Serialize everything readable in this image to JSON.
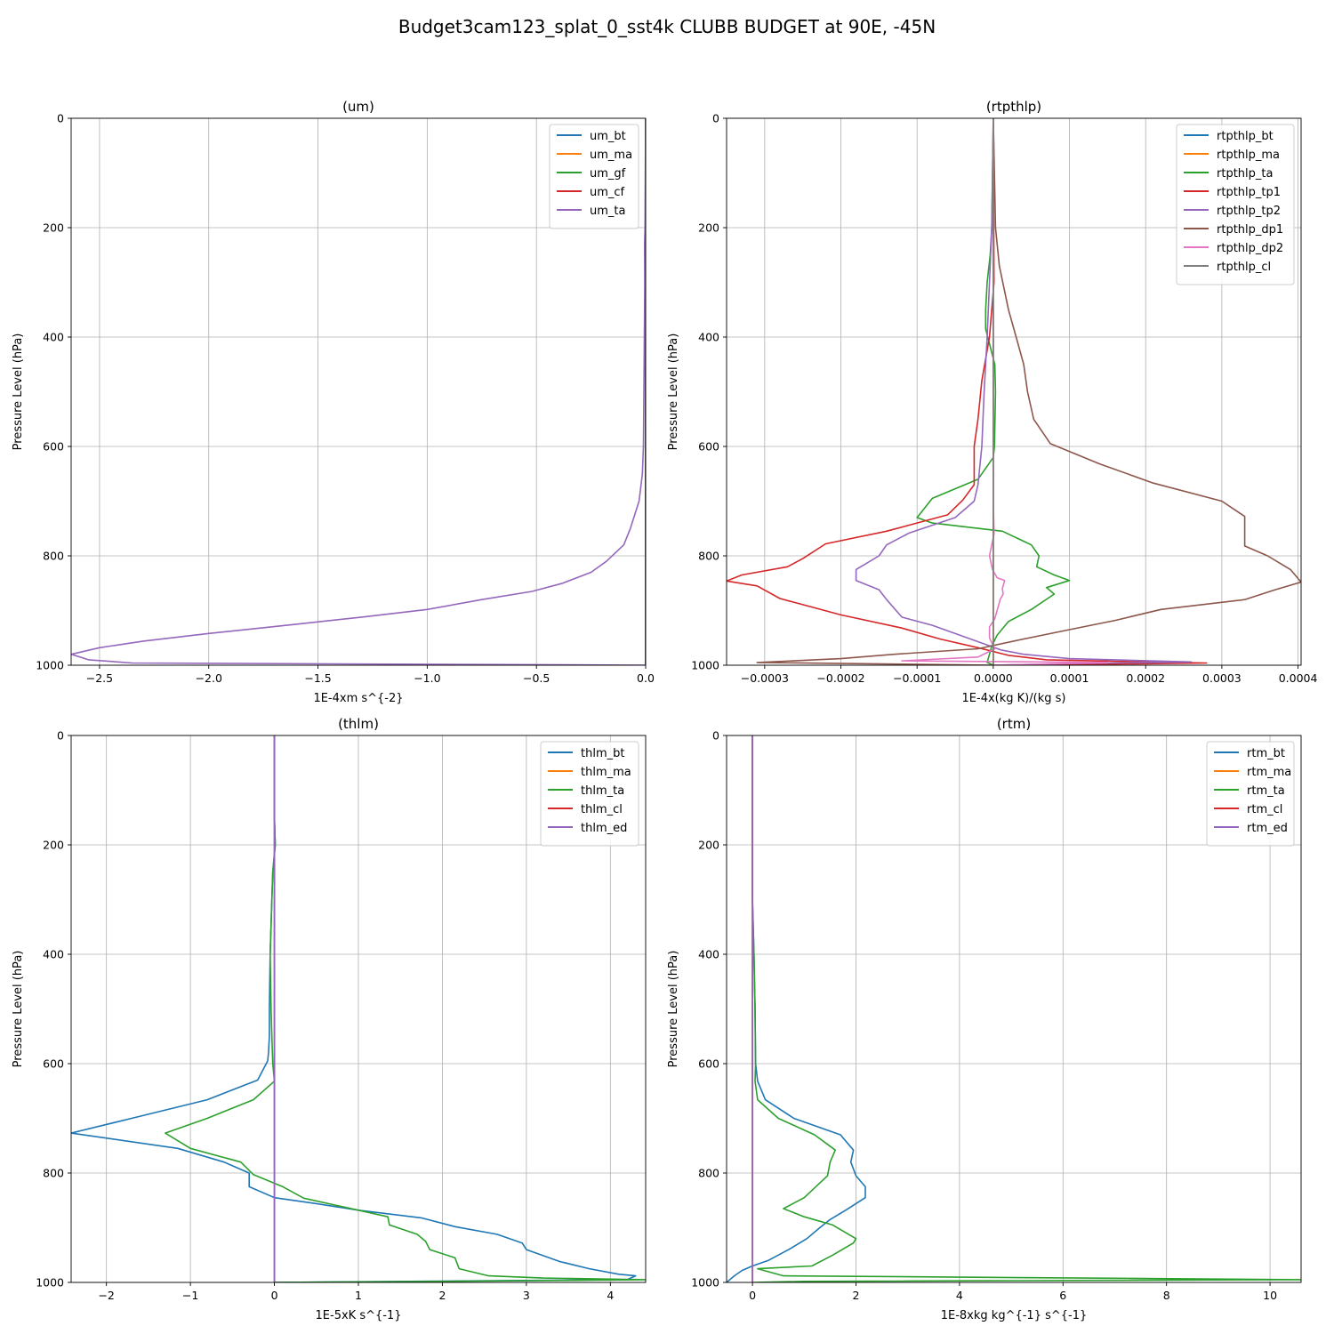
{
  "figure": {
    "title": "Budget3cam123_splat_0_sst4k CLUBB BUDGET at 90E, -45N"
  },
  "chart_data": [
    {
      "type": "line",
      "title": "(um)",
      "xlabel": "1E-4xm s^{-2}",
      "ylabel": "Pressure Level (hPa)",
      "xlim": [
        -2.63,
        0.0
      ],
      "ylim": [
        1000,
        0
      ],
      "y_inverted": true,
      "grid": true,
      "legend_position": "top-right",
      "xticks": [
        -2.5,
        -2.0,
        -1.5,
        -1.0,
        -0.5,
        0.0
      ],
      "xtick_labels": [
        "−2.5",
        "−2.0",
        "−1.5",
        "−1.0",
        "−0.5",
        "0.0"
      ],
      "yticks": [
        0,
        200,
        400,
        600,
        800,
        1000
      ],
      "ytick_labels": [
        "0",
        "200",
        "400",
        "600",
        "800",
        "1000"
      ],
      "series": [
        {
          "name": "um_bt",
          "color": "#1f77b4",
          "x": [
            0,
            0,
            0,
            0,
            0,
            0,
            0,
            0,
            0,
            0,
            0
          ],
          "y": [
            0,
            200,
            400,
            600,
            700,
            800,
            900,
            950,
            980,
            995,
            1000
          ]
        },
        {
          "name": "um_ma",
          "color": "#ff7f0e",
          "x": [
            0,
            0,
            0,
            0,
            0,
            0,
            0,
            0,
            0,
            0,
            0
          ],
          "y": [
            0,
            200,
            400,
            600,
            700,
            800,
            900,
            950,
            980,
            995,
            1000
          ]
        },
        {
          "name": "um_gf",
          "color": "#2ca02c",
          "x": [
            0,
            0,
            0,
            0,
            0,
            0,
            0,
            0,
            0,
            0,
            0
          ],
          "y": [
            0,
            200,
            400,
            600,
            700,
            800,
            900,
            950,
            980,
            995,
            1000
          ]
        },
        {
          "name": "um_cf",
          "color": "#d62728",
          "x": [
            0,
            0,
            0,
            0,
            0,
            0,
            0,
            0,
            0,
            0,
            0,
            0
          ],
          "y": [
            0,
            200,
            230,
            240,
            300,
            400,
            600,
            700,
            800,
            900,
            980,
            1000
          ]
        },
        {
          "name": "um_ta",
          "color": "#9467bd",
          "x": [
            0,
            -0.003,
            -0.005,
            -0.005,
            -0.004,
            -0.006,
            -0.008,
            -0.01,
            -0.015,
            -0.03,
            -0.07,
            -0.1,
            -0.18,
            -0.25,
            -0.38,
            -0.52,
            -0.75,
            -1.0,
            -1.3,
            -1.6,
            -2.0,
            -2.3,
            -2.5,
            -2.63,
            -2.55,
            -2.35,
            0
          ],
          "y": [
            0,
            200,
            230,
            240,
            300,
            400,
            500,
            600,
            650,
            700,
            750,
            780,
            810,
            830,
            850,
            865,
            880,
            898,
            912,
            925,
            942,
            956,
            968,
            980,
            990,
            996,
            1000
          ]
        }
      ]
    },
    {
      "type": "line",
      "title": "(rtpthlp)",
      "xlabel": "1E-4x(kg K)/(kg s)",
      "ylabel": "Pressure Level (hPa)",
      "xlim": [
        -0.00035,
        0.000404
      ],
      "ylim": [
        1000,
        0
      ],
      "y_inverted": true,
      "grid": true,
      "legend_position": "top-right",
      "xticks": [
        -0.0003,
        -0.0002,
        -0.0001,
        0.0,
        0.0001,
        0.0002,
        0.0003,
        0.0004
      ],
      "xtick_labels": [
        "−0.0003",
        "−0.0002",
        "−0.0001",
        "0.0000",
        "0.0001",
        "0.0002",
        "0.0003",
        "0.0004"
      ],
      "yticks": [
        0,
        200,
        400,
        600,
        800,
        1000
      ],
      "ytick_labels": [
        "0",
        "200",
        "400",
        "600",
        "800",
        "1000"
      ],
      "series": [
        {
          "name": "rtpthlp_bt",
          "color": "#1f77b4",
          "x": [
            0,
            0,
            0,
            0,
            0,
            0,
            0,
            0
          ],
          "y": [
            0,
            200,
            400,
            600,
            800,
            900,
            970,
            1000
          ]
        },
        {
          "name": "rtpthlp_ma",
          "color": "#ff7f0e",
          "x": [
            0,
            0,
            0,
            0,
            0,
            0,
            0,
            0,
            0
          ],
          "y": [
            0,
            200,
            400,
            600,
            700,
            750,
            800,
            900,
            1000
          ]
        },
        {
          "name": "rtpthlp_ta",
          "color": "#2ca02c",
          "x": [
            0,
            -2e-06,
            -4e-06,
            -8e-06,
            -1e-05,
            -1e-05,
            2e-06,
            3e-06,
            1.5e-06,
            0,
            -2e-05,
            -8e-05,
            -0.0001,
            -8e-05,
            1.2e-05,
            5e-05,
            6e-05,
            5.7e-05,
            8e-05,
            0.0001,
            7e-05,
            8e-05,
            5e-05,
            2e-05,
            5e-06,
            -2e-06,
            -5e-06,
            -8e-06,
            0
          ],
          "y": [
            0,
            200,
            250,
            300,
            350,
            385,
            450,
            500,
            600,
            620,
            660,
            695,
            730,
            740,
            755,
            780,
            800,
            820,
            835,
            845,
            858,
            870,
            898,
            920,
            945,
            965,
            980,
            995,
            1000
          ]
        },
        {
          "name": "rtpthlp_tp1",
          "color": "#d62728",
          "x": [
            0,
            1e-06,
            -5e-06,
            -1.5e-05,
            -2e-05,
            -2.5e-05,
            -2.5e-05,
            -4e-05,
            -6e-05,
            -0.00014,
            -0.00022,
            -0.00025,
            -0.00027,
            -0.00033,
            -0.00035,
            -0.00031,
            -0.00028,
            -0.0002,
            -0.00012,
            -7e-05,
            -2e-05,
            2e-05,
            7e-05,
            0.0002,
            0.00028,
            0.00015,
            0
          ],
          "y": [
            0,
            300,
            400,
            480,
            550,
            600,
            670,
            698,
            725,
            755,
            778,
            805,
            820,
            835,
            846,
            855,
            878,
            908,
            932,
            952,
            968,
            982,
            990,
            994,
            996,
            998,
            1000
          ]
        },
        {
          "name": "rtpthlp_tp2",
          "color": "#9467bd",
          "x": [
            0,
            -2e-06,
            -5e-06,
            -8e-06,
            -1.2e-05,
            -1.5e-05,
            -2e-05,
            -2.5e-05,
            -5e-05,
            -0.00011,
            -0.00014,
            -0.00015,
            -0.00018,
            -0.00018,
            -0.00015,
            -0.00014,
            -0.00012,
            -8e-05,
            -3e-05,
            -1e-05,
            1e-05,
            4e-05,
            0.0001,
            0.00026,
            0.0001,
            0
          ],
          "y": [
            0,
            200,
            300,
            400,
            500,
            600,
            670,
            700,
            730,
            758,
            780,
            800,
            825,
            845,
            862,
            880,
            912,
            927,
            952,
            962,
            972,
            980,
            988,
            994,
            997,
            1000
          ]
        },
        {
          "name": "rtpthlp_dp1",
          "color": "#8c564b",
          "x": [
            0,
            3e-06,
            8e-06,
            2e-05,
            3e-05,
            4e-05,
            4.5e-05,
            5.3e-05,
            7.5e-05,
            0.00014,
            0.00021,
            0.0003,
            0.00033,
            0.00033,
            0.00036,
            0.00039,
            0.000404,
            0.00037,
            0.00033,
            0.00022,
            0.00016,
            0.0001,
            3e-05,
            -2e-05,
            -0.00013,
            -0.0002,
            -0.00031,
            0
          ],
          "y": [
            0,
            200,
            270,
            350,
            400,
            450,
            500,
            550,
            595,
            632,
            667,
            700,
            728,
            782,
            800,
            825,
            848,
            862,
            880,
            898,
            918,
            935,
            955,
            970,
            980,
            988,
            995,
            1000
          ]
        },
        {
          "name": "rtpthlp_dp2",
          "color": "#e377c2",
          "x": [
            0,
            0,
            0,
            0,
            0,
            1e-06,
            -5e-06,
            -1e-06,
            5e-06,
            1.5e-05,
            1.2e-05,
            1.3e-05,
            9e-06,
            5e-06,
            2e-06,
            -5e-06,
            -5e-06,
            2e-06,
            -2e-05,
            -0.00012,
            0.00015,
            0
          ],
          "y": [
            0,
            200,
            400,
            600,
            700,
            760,
            800,
            825,
            840,
            845,
            860,
            870,
            880,
            900,
            915,
            930,
            950,
            970,
            985,
            992,
            995,
            1000
          ]
        },
        {
          "name": "rtpthlp_cl",
          "color": "#7f7f7f",
          "x": [
            0,
            0,
            0,
            0,
            0,
            0,
            0,
            0
          ],
          "y": [
            0,
            200,
            400,
            600,
            800,
            900,
            970,
            1000
          ]
        }
      ]
    },
    {
      "type": "line",
      "title": "(thlm)",
      "xlabel": "1E-5xK s^{-1}",
      "ylabel": "Pressure Level (hPa)",
      "xlim": [
        -2.42,
        4.42
      ],
      "ylim": [
        1000,
        0
      ],
      "y_inverted": true,
      "grid": true,
      "legend_position": "top-right",
      "xticks": [
        -2,
        -1,
        0,
        1,
        2,
        3,
        4
      ],
      "xtick_labels": [
        "−2",
        "−1",
        "0",
        "1",
        "2",
        "3",
        "4"
      ],
      "yticks": [
        0,
        200,
        400,
        600,
        800,
        1000
      ],
      "ytick_labels": [
        "0",
        "200",
        "400",
        "600",
        "800",
        "1000"
      ],
      "series": [
        {
          "name": "thlm_bt",
          "color": "#1f77b4",
          "x": [
            0,
            0,
            0.01,
            -0.02,
            -0.03,
            -0.05,
            -0.06,
            -0.06,
            -0.07,
            -0.08,
            -0.2,
            -0.8,
            -1.7,
            -2.42,
            -1.15,
            -0.6,
            -0.3,
            -0.3,
            0,
            0.5,
            1.0,
            1.75,
            2.15,
            2.65,
            2.95,
            3.0,
            3.4,
            3.75,
            4.1,
            4.3,
            4.2,
            0
          ],
          "y": [
            0,
            150,
            200,
            250,
            300,
            400,
            500,
            550,
            580,
            595,
            630,
            666,
            700,
            727,
            755,
            780,
            800,
            825,
            845,
            856,
            868,
            882,
            898,
            912,
            928,
            940,
            962,
            975,
            985,
            988,
            995,
            1000
          ]
        },
        {
          "name": "thlm_ma",
          "color": "#ff7f0e",
          "x": [
            0,
            0,
            0,
            0,
            0,
            0,
            0
          ],
          "y": [
            0,
            200,
            400,
            600,
            800,
            900,
            1000
          ]
        },
        {
          "name": "thlm_ta",
          "color": "#2ca02c",
          "x": [
            0,
            0,
            0.01,
            -0.02,
            -0.03,
            -0.05,
            -0.04,
            -0.03,
            -0.02,
            0,
            -0.25,
            -0.8,
            -1.3,
            -1.0,
            -0.4,
            -0.25,
            0.1,
            0.35,
            1.0,
            1.35,
            1.37,
            1.7,
            1.8,
            1.85,
            2.15,
            2.2,
            2.55,
            3.2,
            4.42,
            2.0,
            0
          ],
          "y": [
            0,
            150,
            200,
            250,
            300,
            400,
            500,
            550,
            600,
            632,
            666,
            700,
            727,
            755,
            780,
            803,
            825,
            846,
            868,
            880,
            895,
            912,
            925,
            940,
            955,
            975,
            988,
            992,
            995,
            998,
            1000
          ]
        },
        {
          "name": "thlm_cl",
          "color": "#d62728",
          "x": [
            0,
            0,
            0,
            0,
            0,
            0,
            0
          ],
          "y": [
            0,
            200,
            400,
            600,
            800,
            900,
            1000
          ]
        },
        {
          "name": "thlm_ed",
          "color": "#9467bd",
          "x": [
            0,
            0,
            0,
            0,
            0,
            0,
            0
          ],
          "y": [
            0,
            200,
            400,
            600,
            800,
            900,
            1000
          ]
        }
      ]
    },
    {
      "type": "line",
      "title": "(rtm)",
      "xlabel": "1E-8xkg kg^{-1} s^{-1}",
      "ylabel": "Pressure Level (hPa)",
      "xlim": [
        -0.5,
        10.6
      ],
      "ylim": [
        1000,
        0
      ],
      "y_inverted": true,
      "grid": true,
      "legend_position": "top-right",
      "xticks": [
        0,
        2,
        4,
        6,
        8,
        10
      ],
      "xtick_labels": [
        "0",
        "2",
        "4",
        "6",
        "8",
        "10"
      ],
      "yticks": [
        0,
        200,
        400,
        600,
        800,
        1000
      ],
      "ytick_labels": [
        "0",
        "200",
        "400",
        "600",
        "800",
        "1000"
      ],
      "series": [
        {
          "name": "rtm_bt",
          "color": "#1f77b4",
          "x": [
            0,
            0,
            0,
            0.03,
            0.05,
            0.06,
            0.1,
            0.25,
            0.8,
            1.7,
            1.95,
            1.9,
            2.0,
            2.18,
            2.18,
            1.8,
            1.5,
            1.3,
            1.05,
            0.7,
            0.3,
            0,
            -0.2,
            -0.35,
            -0.5
          ],
          "y": [
            0,
            200,
            300,
            400,
            500,
            600,
            632,
            666,
            700,
            730,
            758,
            780,
            805,
            825,
            845,
            868,
            885,
            900,
            920,
            940,
            960,
            970,
            978,
            988,
            1000
          ]
        },
        {
          "name": "rtm_ma",
          "color": "#ff7f0e",
          "x": [
            0,
            0,
            0,
            0,
            0,
            0,
            0
          ],
          "y": [
            0,
            200,
            400,
            600,
            800,
            900,
            1000
          ]
        },
        {
          "name": "rtm_ta",
          "color": "#2ca02c",
          "x": [
            0,
            0,
            0,
            0.03,
            0.05,
            0.06,
            0.05,
            0.1,
            0.5,
            1.2,
            1.6,
            1.5,
            1.45,
            1.0,
            0.6,
            1.0,
            1.55,
            2.0,
            1.95,
            1.55,
            1.15,
            0.1,
            0.6,
            10.6,
            1.0,
            0
          ],
          "y": [
            0,
            200,
            300,
            400,
            500,
            600,
            632,
            666,
            700,
            730,
            758,
            780,
            805,
            845,
            865,
            880,
            895,
            920,
            928,
            950,
            970,
            975,
            988,
            995,
            998,
            1000
          ]
        },
        {
          "name": "rtm_cl",
          "color": "#d62728",
          "x": [
            0,
            0,
            0,
            0,
            0,
            0,
            0
          ],
          "y": [
            0,
            200,
            400,
            600,
            800,
            900,
            1000
          ]
        },
        {
          "name": "rtm_ed",
          "color": "#9467bd",
          "x": [
            0,
            0,
            0,
            0,
            0,
            0,
            0
          ],
          "y": [
            0,
            200,
            400,
            600,
            800,
            900,
            1000
          ]
        }
      ]
    }
  ]
}
